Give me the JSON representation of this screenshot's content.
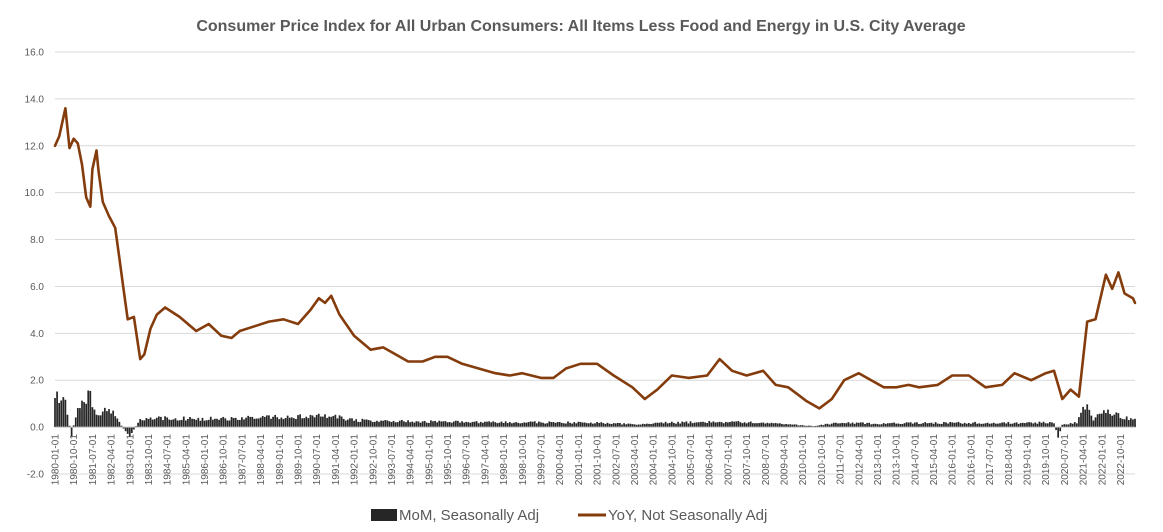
{
  "chart_data": {
    "type": "bar+line",
    "title": "Consumer Price Index for All Urban Consumers: All Items Less Food and Energy in U.S. City Average",
    "ylim": [
      -2.0,
      16.0
    ],
    "yticks": [
      "16.0",
      "14.0",
      "12.0",
      "10.0",
      "8.0",
      "6.0",
      "4.0",
      "2.0",
      "0.0",
      "-2.0"
    ],
    "xticks": [
      "1980-01-01",
      "1980-10-01",
      "1981-07-01",
      "1982-04-01",
      "1983-01-01",
      "1983-10-01",
      "1984-07-01",
      "1985-04-01",
      "1986-01-01",
      "1986-10-01",
      "1987-07-01",
      "1988-04-01",
      "1989-01-01",
      "1989-10-01",
      "1990-07-01",
      "1991-04-01",
      "1992-01-01",
      "1992-10-01",
      "1993-07-01",
      "1994-04-01",
      "1995-01-01",
      "1995-10-01",
      "1996-07-01",
      "1997-04-01",
      "1998-01-01",
      "1998-10-01",
      "1999-07-01",
      "2000-04-01",
      "2001-01-01",
      "2001-10-01",
      "2002-07-01",
      "2003-04-01",
      "2004-01-01",
      "2004-10-01",
      "2005-07-01",
      "2006-04-01",
      "2007-01-01",
      "2007-10-01",
      "2008-07-01",
      "2009-04-01",
      "2010-01-01",
      "2010-10-01",
      "2011-07-01",
      "2012-04-01",
      "2013-01-01",
      "2013-10-01",
      "2014-07-01",
      "2015-04-01",
      "2016-01-01",
      "2016-10-01",
      "2017-07-01",
      "2018-04-01",
      "2019-01-01",
      "2019-10-01",
      "2020-07-01",
      "2021-04-01",
      "2022-01-01",
      "2022-10-01"
    ],
    "grid": true,
    "legend_position": "bottom",
    "series": [
      {
        "name": "MoM, Seasonally Adj",
        "type": "bar",
        "color": "#262626",
        "anchors": [
          [
            "1980-01",
            1.35
          ],
          [
            "1980-06",
            1.0
          ],
          [
            "1980-09",
            -0.4
          ],
          [
            "1980-12",
            1.0
          ],
          [
            "1981-06",
            1.3
          ],
          [
            "1981-10",
            0.5
          ],
          [
            "1982-01",
            0.8
          ],
          [
            "1982-06",
            0.6
          ],
          [
            "1982-09",
            0.05
          ],
          [
            "1983-01",
            -0.4
          ],
          [
            "1983-06",
            0.35
          ],
          [
            "1984-01",
            0.4
          ],
          [
            "1986-01",
            0.35
          ],
          [
            "1988-01",
            0.4
          ],
          [
            "1990-01",
            0.45
          ],
          [
            "1991-01",
            0.5
          ],
          [
            "1992-01",
            0.3
          ],
          [
            "1994-01",
            0.25
          ],
          [
            "1996-01",
            0.22
          ],
          [
            "1998-01",
            0.2
          ],
          [
            "2000-01",
            0.2
          ],
          [
            "2002-01",
            0.18
          ],
          [
            "2003-06",
            0.1
          ],
          [
            "2004-06",
            0.18
          ],
          [
            "2006-06",
            0.22
          ],
          [
            "2008-06",
            0.2
          ],
          [
            "2009-06",
            0.12
          ],
          [
            "2010-06",
            0.05
          ],
          [
            "2011-06",
            0.18
          ],
          [
            "2013-01",
            0.15
          ],
          [
            "2015-01",
            0.18
          ],
          [
            "2017-01",
            0.18
          ],
          [
            "2019-01",
            0.18
          ],
          [
            "2020-02",
            0.2
          ],
          [
            "2020-04",
            -0.45
          ],
          [
            "2020-06",
            0.1
          ],
          [
            "2021-01",
            0.2
          ],
          [
            "2021-04",
            0.85
          ],
          [
            "2021-06",
            0.8
          ],
          [
            "2021-09",
            0.3
          ],
          [
            "2022-01",
            0.6
          ],
          [
            "2022-06",
            0.6
          ],
          [
            "2022-12",
            0.4
          ],
          [
            "2023-05",
            0.4
          ]
        ]
      },
      {
        "name": "YoY, Not Seasonally Adj",
        "type": "line",
        "color": "#843c0c",
        "points": [
          [
            "1980-01",
            12.0
          ],
          [
            "1980-03",
            12.4
          ],
          [
            "1980-06",
            13.6
          ],
          [
            "1980-08",
            11.9
          ],
          [
            "1980-10",
            12.3
          ],
          [
            "1980-12",
            12.1
          ],
          [
            "1981-02",
            11.2
          ],
          [
            "1981-04",
            9.8
          ],
          [
            "1981-06",
            9.4
          ],
          [
            "1981-07",
            11.0
          ],
          [
            "1981-09",
            11.8
          ],
          [
            "1981-10",
            10.9
          ],
          [
            "1981-12",
            9.6
          ],
          [
            "1982-03",
            9.0
          ],
          [
            "1982-06",
            8.5
          ],
          [
            "1982-08",
            7.2
          ],
          [
            "1982-10",
            5.9
          ],
          [
            "1982-12",
            4.6
          ],
          [
            "1983-03",
            4.7
          ],
          [
            "1983-06",
            2.9
          ],
          [
            "1983-08",
            3.1
          ],
          [
            "1983-11",
            4.2
          ],
          [
            "1984-02",
            4.8
          ],
          [
            "1984-06",
            5.1
          ],
          [
            "1985-01",
            4.7
          ],
          [
            "1985-09",
            4.1
          ],
          [
            "1986-03",
            4.4
          ],
          [
            "1986-09",
            3.9
          ],
          [
            "1987-02",
            3.8
          ],
          [
            "1987-06",
            4.1
          ],
          [
            "1988-01",
            4.3
          ],
          [
            "1988-08",
            4.5
          ],
          [
            "1989-03",
            4.6
          ],
          [
            "1989-10",
            4.4
          ],
          [
            "1990-04",
            5.0
          ],
          [
            "1990-08",
            5.5
          ],
          [
            "1990-11",
            5.3
          ],
          [
            "1991-02",
            5.6
          ],
          [
            "1991-06",
            4.8
          ],
          [
            "1992-01",
            3.9
          ],
          [
            "1992-09",
            3.3
          ],
          [
            "1993-03",
            3.4
          ],
          [
            "1993-09",
            3.1
          ],
          [
            "1994-03",
            2.8
          ],
          [
            "1994-10",
            2.8
          ],
          [
            "1995-04",
            3.0
          ],
          [
            "1995-10",
            3.0
          ],
          [
            "1996-05",
            2.7
          ],
          [
            "1997-01",
            2.5
          ],
          [
            "1997-09",
            2.3
          ],
          [
            "1998-04",
            2.2
          ],
          [
            "1998-10",
            2.3
          ],
          [
            "1999-07",
            2.1
          ],
          [
            "2000-01",
            2.1
          ],
          [
            "2000-07",
            2.5
          ],
          [
            "2001-02",
            2.7
          ],
          [
            "2001-10",
            2.7
          ],
          [
            "2002-06",
            2.2
          ],
          [
            "2003-03",
            1.7
          ],
          [
            "2003-09",
            1.2
          ],
          [
            "2004-03",
            1.6
          ],
          [
            "2004-10",
            2.2
          ],
          [
            "2005-06",
            2.1
          ],
          [
            "2006-03",
            2.2
          ],
          [
            "2006-09",
            2.9
          ],
          [
            "2007-03",
            2.4
          ],
          [
            "2007-10",
            2.2
          ],
          [
            "2008-06",
            2.4
          ],
          [
            "2008-12",
            1.8
          ],
          [
            "2009-06",
            1.7
          ],
          [
            "2009-09",
            1.5
          ],
          [
            "2010-03",
            1.1
          ],
          [
            "2010-09",
            0.8
          ],
          [
            "2011-03",
            1.2
          ],
          [
            "2011-09",
            2.0
          ],
          [
            "2012-04",
            2.3
          ],
          [
            "2012-10",
            2.0
          ],
          [
            "2013-04",
            1.7
          ],
          [
            "2013-10",
            1.7
          ],
          [
            "2014-04",
            1.8
          ],
          [
            "2014-09",
            1.7
          ],
          [
            "2015-06",
            1.8
          ],
          [
            "2016-01",
            2.2
          ],
          [
            "2016-09",
            2.2
          ],
          [
            "2017-05",
            1.7
          ],
          [
            "2018-01",
            1.8
          ],
          [
            "2018-07",
            2.3
          ],
          [
            "2019-03",
            2.0
          ],
          [
            "2019-10",
            2.3
          ],
          [
            "2020-02",
            2.4
          ],
          [
            "2020-06",
            1.2
          ],
          [
            "2020-10",
            1.6
          ],
          [
            "2021-02",
            1.3
          ],
          [
            "2021-06",
            4.5
          ],
          [
            "2021-10",
            4.6
          ],
          [
            "2022-03",
            6.5
          ],
          [
            "2022-06",
            5.9
          ],
          [
            "2022-09",
            6.6
          ],
          [
            "2022-12",
            5.7
          ],
          [
            "2023-04",
            5.5
          ],
          [
            "2023-05",
            5.3
          ]
        ]
      }
    ]
  }
}
